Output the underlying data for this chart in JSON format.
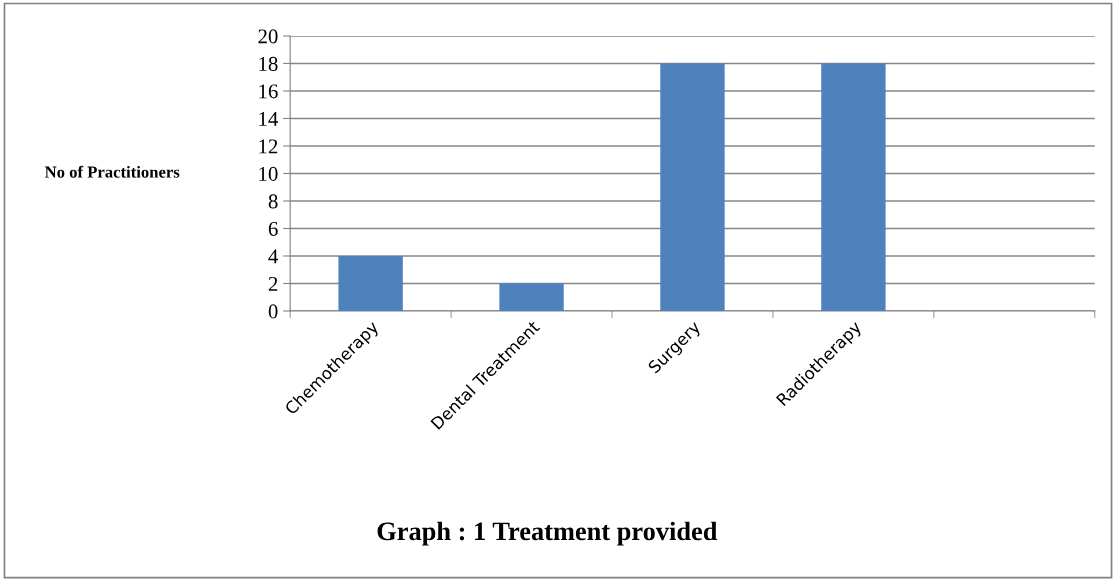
{
  "chart_data": {
    "type": "bar",
    "title": "Graph : 1 Treatment provided",
    "ylabel": "No of Practitioners",
    "categories": [
      "Chemotherapy",
      "Dental Treatment",
      "Surgery",
      "Radiotherapy",
      null
    ],
    "values": [
      4,
      2,
      18,
      18,
      null
    ],
    "color": "#4f81bd",
    "ylim": [
      0,
      20
    ],
    "yticks": [
      0,
      2,
      4,
      6,
      8,
      10,
      12,
      14,
      16,
      18,
      20
    ],
    "grid": "y",
    "legend": false
  }
}
